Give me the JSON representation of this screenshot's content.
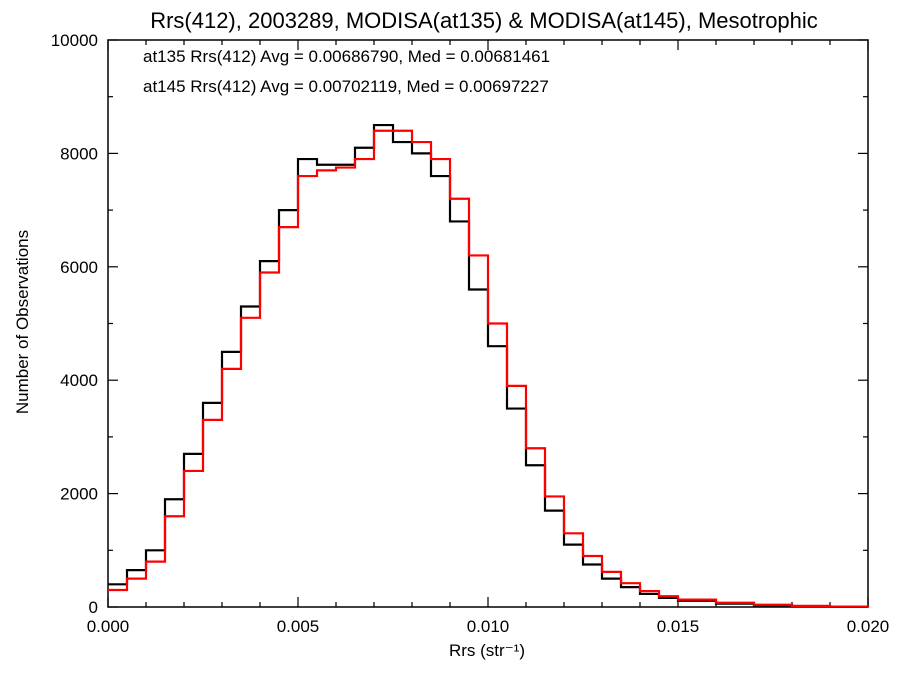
{
  "chart_data": {
    "type": "histogram-step",
    "title": "Rrs(412), 2003289, MODISA(at135) & MODISA(at145), Mesotrophic",
    "xlabel": "Rrs (str⁻¹)",
    "ylabel": "Number of Observations",
    "xlim": [
      0.0,
      0.02
    ],
    "ylim": [
      0,
      10000
    ],
    "x_ticks": [
      "0.000",
      "0.005",
      "0.010",
      "0.015",
      "0.020"
    ],
    "x_tick_values": [
      0.0,
      0.005,
      0.01,
      0.015,
      0.02
    ],
    "y_ticks": [
      "0",
      "2000",
      "4000",
      "6000",
      "8000",
      "10000"
    ],
    "y_tick_values": [
      0,
      2000,
      4000,
      6000,
      8000,
      10000
    ],
    "grid": false,
    "annotations": [
      {
        "text": "at135 Rrs(412) Avg = 0.00686790, Med = 0.00681461",
        "color": "#000000"
      },
      {
        "text": "at145 Rrs(412) Avg = 0.00702119, Med = 0.00697227",
        "color": "#ff0000"
      }
    ],
    "series": [
      {
        "color": "#000000",
        "x": [
          0.0,
          0.0005,
          0.001,
          0.0015,
          0.002,
          0.0025,
          0.003,
          0.0035,
          0.004,
          0.0045,
          0.005,
          0.0055,
          0.006,
          0.0065,
          0.007,
          0.0075,
          0.008,
          0.0085,
          0.009,
          0.0095,
          0.01,
          0.0105,
          0.011,
          0.0115,
          0.012,
          0.0125,
          0.013,
          0.0135,
          0.014,
          0.0145,
          0.015,
          0.016,
          0.017,
          0.018,
          0.019,
          0.02
        ],
        "y": [
          400,
          650,
          1000,
          1900,
          2700,
          3600,
          4500,
          5300,
          6100,
          7000,
          7900,
          7800,
          7800,
          8100,
          8500,
          8200,
          8000,
          7600,
          6800,
          5600,
          4600,
          3500,
          2500,
          1700,
          1100,
          750,
          500,
          350,
          230,
          160,
          110,
          60,
          30,
          15,
          5,
          0
        ]
      },
      {
        "color": "#ff0000",
        "x": [
          0.0,
          0.0005,
          0.001,
          0.0015,
          0.002,
          0.0025,
          0.003,
          0.0035,
          0.004,
          0.0045,
          0.005,
          0.0055,
          0.006,
          0.0065,
          0.007,
          0.0075,
          0.008,
          0.0085,
          0.009,
          0.0095,
          0.01,
          0.0105,
          0.011,
          0.0115,
          0.012,
          0.0125,
          0.013,
          0.0135,
          0.014,
          0.0145,
          0.015,
          0.016,
          0.017,
          0.018,
          0.019,
          0.02
        ],
        "y": [
          300,
          500,
          800,
          1600,
          2400,
          3300,
          4200,
          5100,
          5900,
          6700,
          7600,
          7700,
          7750,
          7900,
          8400,
          8400,
          8200,
          7900,
          7200,
          6200,
          5000,
          3900,
          2800,
          1950,
          1300,
          900,
          620,
          420,
          280,
          190,
          130,
          75,
          40,
          20,
          8,
          0
        ]
      }
    ]
  }
}
